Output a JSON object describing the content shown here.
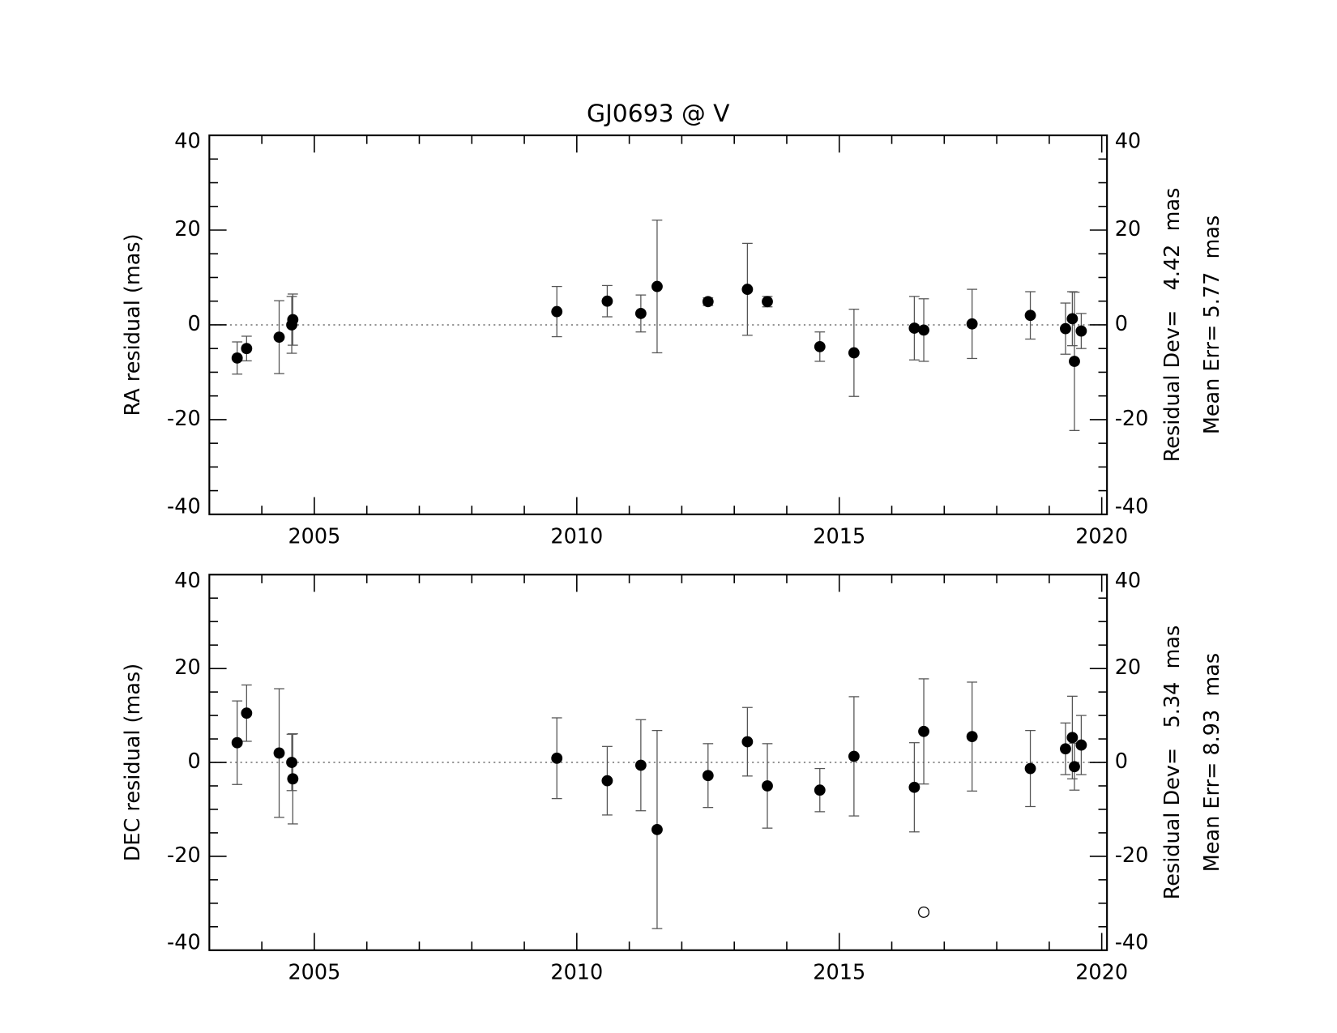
{
  "chart_data": [
    {
      "type": "scatter",
      "title": "GJ0693 @ V",
      "ylabel": "RA residual (mas)",
      "annotations": [
        "Residual Dev=   4.42  mas",
        "Mean Err= 5.77  mas"
      ],
      "x": [
        2003.53,
        2003.71,
        2004.33,
        2004.57,
        2004.59,
        2009.62,
        2010.58,
        2011.22,
        2011.53,
        2012.5,
        2013.25,
        2013.63,
        2014.63,
        2015.28,
        2016.43,
        2016.61,
        2017.53,
        2018.64,
        2019.31,
        2019.44,
        2019.48,
        2019.61
      ],
      "values": [
        -7.0,
        -5.0,
        -2.6,
        0.0,
        1.1,
        2.8,
        5.0,
        2.4,
        8.1,
        4.9,
        7.5,
        4.9,
        -4.6,
        -5.9,
        -0.7,
        -1.1,
        0.2,
        2.0,
        -0.8,
        1.3,
        -7.7,
        -1.3
      ],
      "errors": [
        3.4,
        2.6,
        7.7,
        6.0,
        5.4,
        5.3,
        3.3,
        3.9,
        14.0,
        0.8,
        9.7,
        1.1,
        3.1,
        9.2,
        6.7,
        6.6,
        7.3,
        5.0,
        5.4,
        5.7,
        14.6,
        3.7
      ],
      "color": "#000000",
      "hline": 0,
      "xlim": [
        2003.0,
        2020.1
      ],
      "xticks": [
        2005,
        2010,
        2015,
        2020
      ],
      "xminorticks": [
        2004,
        2006,
        2007,
        2008,
        2009,
        2011,
        2012,
        2013,
        2014,
        2016,
        2017,
        2018,
        2019
      ],
      "ylim": [
        -40,
        40
      ],
      "yticks": [
        -40,
        -20,
        0,
        20,
        40
      ],
      "yminorticks": [
        -35,
        -30,
        -25,
        -15,
        -10,
        -5,
        5,
        10,
        15,
        25,
        30,
        35
      ],
      "y2lim": [
        -40,
        40
      ],
      "y2ticks": [
        -40,
        -20,
        0,
        20,
        40
      ]
    },
    {
      "type": "scatter",
      "ylabel": "DEC residual (mas)",
      "annotations": [
        "Residual Dev=   5.34  mas",
        "Mean Err= 8.93  mas"
      ],
      "x": [
        2003.53,
        2003.71,
        2004.33,
        2004.57,
        2004.59,
        2009.62,
        2010.58,
        2011.22,
        2011.53,
        2012.5,
        2013.25,
        2013.63,
        2014.63,
        2015.28,
        2016.43,
        2016.61,
        2017.53,
        2018.64,
        2019.31,
        2019.44,
        2019.48,
        2019.61
      ],
      "values": [
        4.2,
        10.5,
        2.0,
        0.0,
        -3.5,
        0.9,
        -3.9,
        -0.6,
        -14.3,
        -2.8,
        4.4,
        -5.0,
        -5.9,
        1.3,
        -5.3,
        6.6,
        5.5,
        -1.3,
        2.9,
        5.3,
        -0.9,
        3.7
      ],
      "errors": [
        8.9,
        6.0,
        13.7,
        6.0,
        9.6,
        8.6,
        7.3,
        9.7,
        21.1,
        6.8,
        7.3,
        9.0,
        4.6,
        12.7,
        9.5,
        11.2,
        11.6,
        8.1,
        5.5,
        8.8,
        5.0,
        6.3
      ],
      "excluded": {
        "x": [
          2016.61
        ],
        "values": [
          -31.9
        ]
      },
      "color": "#000000",
      "hline": 0,
      "xlim": [
        2003.0,
        2020.1
      ],
      "xticks": [
        2005,
        2010,
        2015,
        2020
      ],
      "xminorticks": [
        2004,
        2006,
        2007,
        2008,
        2009,
        2011,
        2012,
        2013,
        2014,
        2016,
        2017,
        2018,
        2019
      ],
      "ylim": [
        -40,
        40
      ],
      "yticks": [
        -40,
        -20,
        0,
        20,
        40
      ],
      "yminorticks": [
        -35,
        -30,
        -25,
        -15,
        -10,
        -5,
        5,
        10,
        15,
        25,
        30,
        35
      ],
      "y2lim": [
        -40,
        40
      ],
      "y2ticks": [
        -40,
        -20,
        0,
        20,
        40
      ]
    }
  ]
}
